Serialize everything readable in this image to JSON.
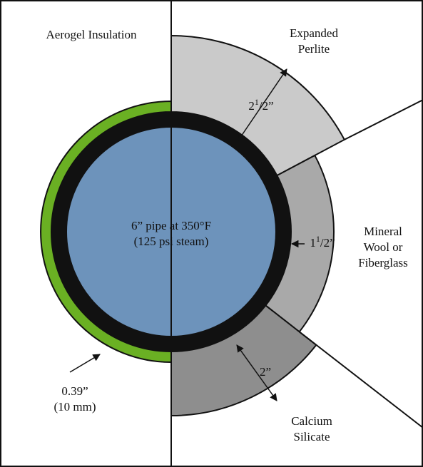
{
  "title": "Aerogel Insulation",
  "labels": {
    "perlite": [
      "Expanded",
      "Perlite"
    ],
    "mineral": [
      "Mineral",
      "Wool or",
      "Fiberglass"
    ],
    "calcium": [
      "Calcium",
      "Silicate"
    ],
    "pipe": [
      "6” pipe at 350°F",
      "(125 psi steam)"
    ],
    "aerogel_thickness": [
      "0.39”",
      "(10 mm)"
    ]
  },
  "dimensions": {
    "perlite": [
      "2",
      "1",
      "/2”"
    ],
    "mineral": [
      "1",
      "1",
      "/2”"
    ],
    "calcium": [
      "2”"
    ]
  }
}
